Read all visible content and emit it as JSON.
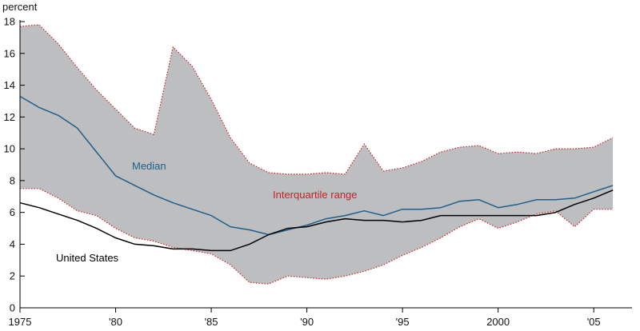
{
  "chart_data": {
    "type": "area",
    "y_unit_label": "percent",
    "xlim": [
      1975,
      2007
    ],
    "ylim": [
      0,
      18
    ],
    "x_ticks": [
      1975,
      1980,
      1985,
      1990,
      1995,
      2000,
      2005
    ],
    "x_tick_labels": [
      "1975",
      "'80",
      "'85",
      "'90",
      "'95",
      "2000",
      "'05"
    ],
    "y_ticks": [
      0,
      2,
      4,
      6,
      8,
      10,
      12,
      14,
      16,
      18
    ],
    "y_tick_labels": [
      "0",
      "2",
      "4",
      "6",
      "8",
      "10",
      "12",
      "14",
      "16",
      "18"
    ],
    "grid": false,
    "annotations": {
      "median": "Median",
      "interquartile": "Interquartile range",
      "united_states": "United States"
    },
    "colors": {
      "band_fill": "#bcbec0",
      "band_edge": "#d0212a",
      "median_line": "#1f5f8b",
      "us_line": "#000000",
      "median_text": "#1f5f8b",
      "interquartile_text": "#c8202a",
      "us_text": "#000000"
    },
    "x": [
      1975,
      1976,
      1977,
      1978,
      1979,
      1980,
      1981,
      1982,
      1983,
      1984,
      1985,
      1986,
      1987,
      1988,
      1989,
      1990,
      1991,
      1992,
      1993,
      1994,
      1995,
      1996,
      1997,
      1998,
      1999,
      2000,
      2001,
      2002,
      2003,
      2004,
      2005,
      2006
    ],
    "series": [
      {
        "name": "Interquartile range upper",
        "values": [
          17.7,
          17.8,
          16.6,
          15.1,
          13.7,
          12.5,
          11.3,
          10.9,
          16.4,
          15.2,
          13.1,
          10.7,
          9.1,
          8.5,
          8.4,
          8.4,
          8.5,
          8.4,
          10.3,
          8.6,
          8.8,
          9.2,
          9.8,
          10.1,
          10.2,
          9.7,
          9.8,
          9.7,
          10.0,
          10.0,
          10.1,
          10.7
        ]
      },
      {
        "name": "Interquartile range lower",
        "values": [
          7.5,
          7.5,
          6.9,
          6.1,
          5.8,
          5.0,
          4.4,
          4.2,
          3.8,
          3.6,
          3.4,
          2.7,
          1.6,
          1.5,
          2.0,
          1.9,
          1.8,
          2.0,
          2.3,
          2.7,
          3.3,
          3.8,
          4.4,
          5.1,
          5.6,
          5.0,
          5.4,
          5.9,
          6.1,
          5.1,
          6.2,
          6.2
        ]
      },
      {
        "name": "Median",
        "values": [
          13.3,
          12.6,
          12.1,
          11.3,
          9.8,
          8.3,
          7.7,
          7.1,
          6.6,
          6.2,
          5.8,
          5.1,
          4.9,
          4.6,
          4.9,
          5.2,
          5.6,
          5.8,
          6.1,
          5.8,
          6.2,
          6.2,
          6.3,
          6.7,
          6.8,
          6.3,
          6.5,
          6.8,
          6.8,
          6.9,
          7.3,
          7.7
        ]
      },
      {
        "name": "United States",
        "values": [
          6.6,
          6.3,
          5.9,
          5.5,
          5.0,
          4.4,
          4.0,
          3.9,
          3.7,
          3.7,
          3.6,
          3.6,
          4.0,
          4.6,
          5.0,
          5.1,
          5.4,
          5.6,
          5.5,
          5.5,
          5.4,
          5.5,
          5.8,
          5.8,
          5.8,
          5.8,
          5.8,
          5.8,
          6.0,
          6.5,
          6.9,
          7.4
        ]
      }
    ]
  }
}
